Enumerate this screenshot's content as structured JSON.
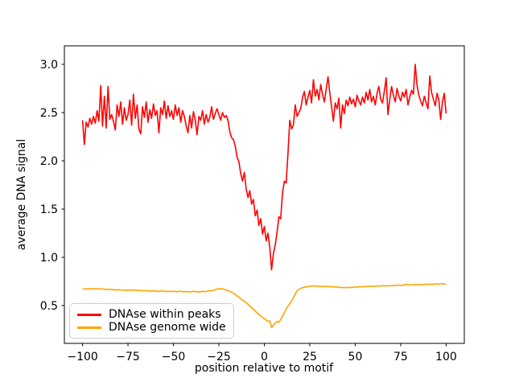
{
  "figure": {
    "background": "#ffffff",
    "spine_color": "#000000",
    "tick_color": "#000000"
  },
  "chart_data": {
    "type": "line",
    "title": "",
    "xlabel": "position relative to motif",
    "ylabel": "average DNA signal",
    "xlim": [
      -110,
      110
    ],
    "ylim": [
      0.108,
      3.192
    ],
    "xticks": [
      -100,
      -75,
      -50,
      -25,
      0,
      25,
      50,
      75,
      100
    ],
    "xtick_labels": [
      "−100",
      "−75",
      "−50",
      "−25",
      "0",
      "25",
      "50",
      "75",
      "100"
    ],
    "yticks": [
      0.5,
      1.0,
      1.5,
      2.0,
      2.5,
      3.0
    ],
    "ytick_labels": [
      "0.5",
      "1.0",
      "1.5",
      "2.0",
      "2.5",
      "3.0"
    ],
    "grid": false,
    "legend_position": "lower left",
    "x": [
      -100,
      -99,
      -98,
      -97,
      -96,
      -95,
      -94,
      -93,
      -92,
      -91,
      -90,
      -89,
      -88,
      -87,
      -86,
      -85,
      -84,
      -83,
      -82,
      -81,
      -80,
      -79,
      -78,
      -77,
      -76,
      -75,
      -74,
      -73,
      -72,
      -71,
      -70,
      -69,
      -68,
      -67,
      -66,
      -65,
      -64,
      -63,
      -62,
      -61,
      -60,
      -59,
      -58,
      -57,
      -56,
      -55,
      -54,
      -53,
      -52,
      -51,
      -50,
      -49,
      -48,
      -47,
      -46,
      -45,
      -44,
      -43,
      -42,
      -41,
      -40,
      -39,
      -38,
      -37,
      -36,
      -35,
      -34,
      -33,
      -32,
      -31,
      -30,
      -29,
      -28,
      -27,
      -26,
      -25,
      -24,
      -23,
      -22,
      -21,
      -20,
      -19,
      -18,
      -17,
      -16,
      -15,
      -14,
      -13,
      -12,
      -11,
      -10,
      -9,
      -8,
      -7,
      -6,
      -5,
      -4,
      -3,
      -2,
      -1,
      0,
      1,
      2,
      3,
      4,
      5,
      6,
      7,
      8,
      9,
      10,
      11,
      12,
      13,
      14,
      15,
      16,
      17,
      18,
      19,
      20,
      21,
      22,
      23,
      24,
      25,
      26,
      27,
      28,
      29,
      30,
      31,
      32,
      33,
      34,
      35,
      36,
      37,
      38,
      39,
      40,
      41,
      42,
      43,
      44,
      45,
      46,
      47,
      48,
      49,
      50,
      51,
      52,
      53,
      54,
      55,
      56,
      57,
      58,
      59,
      60,
      61,
      62,
      63,
      64,
      65,
      66,
      67,
      68,
      69,
      70,
      71,
      72,
      73,
      74,
      75,
      76,
      77,
      78,
      79,
      80,
      81,
      82,
      83,
      84,
      85,
      86,
      87,
      88,
      89,
      90,
      91,
      92,
      93,
      94,
      95,
      96,
      97,
      98,
      99,
      100
    ],
    "series": [
      {
        "name": "DNAse within peaks",
        "color": "#ff0000",
        "values": [
          2.42,
          2.17,
          2.4,
          2.35,
          2.44,
          2.38,
          2.46,
          2.39,
          2.52,
          2.41,
          2.78,
          2.36,
          2.67,
          2.34,
          2.77,
          2.43,
          2.48,
          2.41,
          2.32,
          2.58,
          2.46,
          2.61,
          2.38,
          2.55,
          2.42,
          2.48,
          2.63,
          2.37,
          2.69,
          2.44,
          2.58,
          2.33,
          2.28,
          2.56,
          2.45,
          2.61,
          2.4,
          2.53,
          2.44,
          2.59,
          2.47,
          2.52,
          2.29,
          2.55,
          2.48,
          2.62,
          2.44,
          2.57,
          2.46,
          2.52,
          2.43,
          2.58,
          2.47,
          2.55,
          2.4,
          2.52,
          2.46,
          2.36,
          2.29,
          2.47,
          2.34,
          2.51,
          2.42,
          2.27,
          2.46,
          2.42,
          2.52,
          2.38,
          2.48,
          2.4,
          2.45,
          2.56,
          2.43,
          2.49,
          2.54,
          2.48,
          2.42,
          2.5,
          2.45,
          2.47,
          2.42,
          2.3,
          2.24,
          2.22,
          2.15,
          2.04,
          1.99,
          1.87,
          1.79,
          1.88,
          1.71,
          1.62,
          1.69,
          1.55,
          1.6,
          1.43,
          1.49,
          1.33,
          1.4,
          1.24,
          1.32,
          1.17,
          1.25,
          1.1,
          0.87,
          1.04,
          1.13,
          1.26,
          1.42,
          1.4,
          1.67,
          1.79,
          1.77,
          2.08,
          2.42,
          2.33,
          2.37,
          2.58,
          2.46,
          2.5,
          2.54,
          2.65,
          2.72,
          2.58,
          2.66,
          2.73,
          2.6,
          2.84,
          2.67,
          2.74,
          2.63,
          2.79,
          2.69,
          2.61,
          2.74,
          2.87,
          2.71,
          2.56,
          2.41,
          2.6,
          2.54,
          2.65,
          2.34,
          2.58,
          2.49,
          2.63,
          2.57,
          2.66,
          2.59,
          2.64,
          2.56,
          2.68,
          2.62,
          2.58,
          2.66,
          2.6,
          2.71,
          2.63,
          2.74,
          2.61,
          2.67,
          2.58,
          2.7,
          2.77,
          2.64,
          2.6,
          2.72,
          2.86,
          2.48,
          2.64,
          2.77,
          2.68,
          2.61,
          2.75,
          2.67,
          2.62,
          2.71,
          2.66,
          2.74,
          2.58,
          2.66,
          2.73,
          2.69,
          3.0,
          2.78,
          2.68,
          2.62,
          2.57,
          2.67,
          2.6,
          2.54,
          2.88,
          2.71,
          2.64,
          2.57,
          2.7,
          2.63,
          2.43,
          2.61,
          2.7,
          2.49
        ]
      },
      {
        "name": "DNAse genome wide",
        "color": "#ffa500",
        "values": [
          0.675,
          0.67,
          0.672,
          0.677,
          0.67,
          0.675,
          0.672,
          0.678,
          0.672,
          0.675,
          0.67,
          0.673,
          0.67,
          0.665,
          0.672,
          0.665,
          0.668,
          0.662,
          0.665,
          0.66,
          0.665,
          0.662,
          0.658,
          0.663,
          0.655,
          0.66,
          0.662,
          0.655,
          0.665,
          0.658,
          0.66,
          0.655,
          0.658,
          0.652,
          0.657,
          0.65,
          0.655,
          0.648,
          0.652,
          0.655,
          0.648,
          0.652,
          0.645,
          0.65,
          0.655,
          0.648,
          0.645,
          0.65,
          0.644,
          0.648,
          0.645,
          0.65,
          0.642,
          0.646,
          0.65,
          0.643,
          0.647,
          0.642,
          0.645,
          0.64,
          0.645,
          0.648,
          0.642,
          0.645,
          0.64,
          0.644,
          0.648,
          0.643,
          0.647,
          0.65,
          0.655,
          0.652,
          0.658,
          0.665,
          0.672,
          0.67,
          0.678,
          0.672,
          0.668,
          0.66,
          0.655,
          0.648,
          0.638,
          0.628,
          0.615,
          0.6,
          0.588,
          0.57,
          0.558,
          0.545,
          0.53,
          0.512,
          0.495,
          0.478,
          0.462,
          0.445,
          0.425,
          0.408,
          0.39,
          0.378,
          0.365,
          0.35,
          0.335,
          0.342,
          0.27,
          0.3,
          0.318,
          0.335,
          0.325,
          0.355,
          0.392,
          0.425,
          0.465,
          0.495,
          0.52,
          0.548,
          0.585,
          0.617,
          0.655,
          0.668,
          0.678,
          0.685,
          0.69,
          0.694,
          0.697,
          0.7,
          0.702,
          0.705,
          0.7,
          0.703,
          0.698,
          0.7,
          0.697,
          0.7,
          0.696,
          0.698,
          0.694,
          0.697,
          0.692,
          0.695,
          0.69,
          0.692,
          0.688,
          0.685,
          0.688,
          0.684,
          0.687,
          0.69,
          0.686,
          0.69,
          0.693,
          0.69,
          0.694,
          0.697,
          0.693,
          0.696,
          0.7,
          0.696,
          0.699,
          0.702,
          0.698,
          0.701,
          0.705,
          0.7,
          0.703,
          0.707,
          0.702,
          0.705,
          0.708,
          0.704,
          0.707,
          0.71,
          0.706,
          0.709,
          0.712,
          0.708,
          0.711,
          0.715,
          0.72,
          0.713,
          0.716,
          0.712,
          0.715,
          0.718,
          0.714,
          0.717,
          0.72,
          0.716,
          0.719,
          0.722,
          0.718,
          0.721,
          0.724,
          0.72,
          0.723,
          0.726,
          0.722,
          0.725,
          0.728,
          0.724,
          0.72
        ]
      }
    ]
  },
  "legend": {
    "entries": [
      {
        "label": "DNAse within peaks",
        "color": "#ff0000"
      },
      {
        "label": "DNAse genome wide",
        "color": "#ffa500"
      }
    ]
  }
}
